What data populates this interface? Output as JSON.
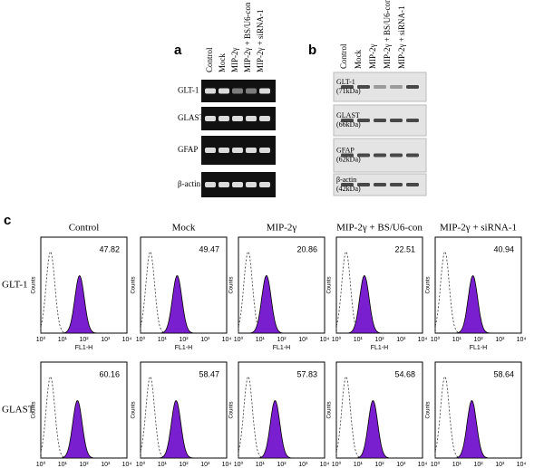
{
  "panel_a": {
    "label": "a",
    "lanes": [
      "Control",
      "Mock",
      "MIP-2γ",
      "MIP-2γ + BS/U6-con",
      "MIP-2γ + siRNA-1"
    ],
    "rows": [
      "GLT-1",
      "GLAST",
      "GFAP",
      "β-actin"
    ]
  },
  "panel_b": {
    "label": "b",
    "lanes": [
      "Control",
      "Mock",
      "MIP-2γ",
      "MIP-2γ + BS/U6-con",
      "MIP-2γ + siRNA-1"
    ],
    "rows": [
      {
        "name": "GLT-1",
        "size": "(71kDa)"
      },
      {
        "name": "GLAST",
        "size": "(66kDa)"
      },
      {
        "name": "GFAP",
        "size": "(62kDa)"
      },
      {
        "name": "β-actin",
        "size": "(42kDa)"
      }
    ]
  },
  "panel_c": {
    "label": "c",
    "columns": [
      "Control",
      "Mock",
      "MIP-2γ",
      "MIP-2γ + BS/U6-con",
      "MIP-2γ + siRNA-1"
    ],
    "rows": [
      {
        "name": "GLT-1",
        "values": [
          47.82,
          49.47,
          20.86,
          22.51,
          40.94
        ]
      },
      {
        "name": "GLAST",
        "values": [
          60.16,
          58.47,
          57.83,
          54.68,
          58.64
        ]
      }
    ],
    "y_label": "Counts",
    "x_label": "FL1-H",
    "xticks": [
      "10⁰",
      "10¹",
      "10²",
      "10³",
      "10⁴"
    ]
  }
}
